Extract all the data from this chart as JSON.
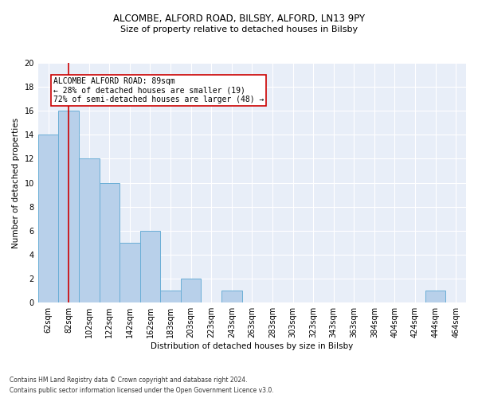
{
  "title1": "ALCOMBE, ALFORD ROAD, BILSBY, ALFORD, LN13 9PY",
  "title2": "Size of property relative to detached houses in Bilsby",
  "xlabel": "Distribution of detached houses by size in Bilsby",
  "ylabel": "Number of detached properties",
  "bins": [
    "62sqm",
    "82sqm",
    "102sqm",
    "122sqm",
    "142sqm",
    "162sqm",
    "183sqm",
    "203sqm",
    "223sqm",
    "243sqm",
    "263sqm",
    "283sqm",
    "303sqm",
    "323sqm",
    "343sqm",
    "363sqm",
    "384sqm",
    "404sqm",
    "424sqm",
    "444sqm",
    "464sqm"
  ],
  "values": [
    14,
    16,
    12,
    10,
    5,
    6,
    1,
    2,
    0,
    1,
    0,
    0,
    0,
    0,
    0,
    0,
    0,
    0,
    0,
    1,
    0
  ],
  "bar_color": "#b8d0ea",
  "bar_edge_color": "#6aaed6",
  "vline_x": 1.0,
  "vline_color": "#cc0000",
  "annotation_line1": "ALCOMBE ALFORD ROAD: 89sqm",
  "annotation_line2": "← 28% of detached houses are smaller (19)",
  "annotation_line3": "72% of semi-detached houses are larger (48) →",
  "annotation_box_color": "white",
  "annotation_box_edge": "#cc0000",
  "ylim": [
    0,
    20
  ],
  "yticks": [
    0,
    2,
    4,
    6,
    8,
    10,
    12,
    14,
    16,
    18,
    20
  ],
  "footnote1": "Contains HM Land Registry data © Crown copyright and database right 2024.",
  "footnote2": "Contains public sector information licensed under the Open Government Licence v3.0.",
  "background_color": "#e8eef8",
  "grid_color": "#ffffff",
  "title1_fontsize": 8.5,
  "title2_fontsize": 8,
  "axis_label_fontsize": 7.5,
  "tick_fontsize": 7,
  "annot_fontsize": 7,
  "footnote_fontsize": 5.5
}
